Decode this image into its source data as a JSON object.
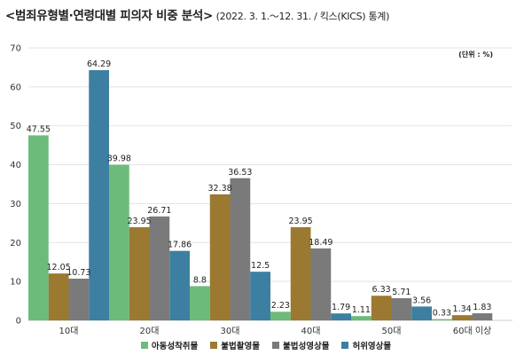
{
  "title": {
    "main": "<범죄유형별·연령대별 피의자 비중 분석>",
    "sub": "(2022. 3. 1.～12. 31. / 킥스(KICS) 통계)"
  },
  "unit": "(단위 : %)",
  "chart_data": {
    "type": "bar",
    "categories": [
      "10대",
      "20대",
      "30대",
      "40대",
      "50대",
      "60대 이상"
    ],
    "ylim": [
      0,
      70
    ],
    "yticks": [
      0,
      10,
      20,
      30,
      40,
      50,
      60,
      70
    ],
    "grid": true,
    "legend_position": "bottom",
    "series": [
      {
        "name": "아동성착취물",
        "color": "#6dbb7b",
        "values": [
          47.55,
          39.98,
          8.8,
          2.23,
          1.11,
          0.33
        ],
        "labels": [
          "47.55",
          "39.98",
          "8.8",
          "2.23",
          "1.11",
          "0.33"
        ]
      },
      {
        "name": "불법촬영물",
        "color": "#9c7931",
        "values": [
          12.05,
          23.95,
          32.38,
          23.95,
          6.33,
          1.34
        ],
        "labels": [
          "12.05",
          "23.95",
          "32.38",
          "23.95",
          "6.33",
          "1.34"
        ]
      },
      {
        "name": "불법성영상물",
        "color": "#7a7a7a",
        "values": [
          10.73,
          26.71,
          36.53,
          18.49,
          5.71,
          1.83
        ],
        "labels": [
          "10.73",
          "26.71",
          "36.53",
          "18.49",
          "5.71",
          "1.83"
        ]
      },
      {
        "name": "허위영상물",
        "color": "#3d7fa0",
        "values": [
          64.29,
          17.86,
          12.5,
          1.79,
          3.56,
          null
        ],
        "labels": [
          "64.29",
          "17.86",
          "12.5",
          "1.79",
          "3.56",
          null
        ]
      }
    ]
  }
}
